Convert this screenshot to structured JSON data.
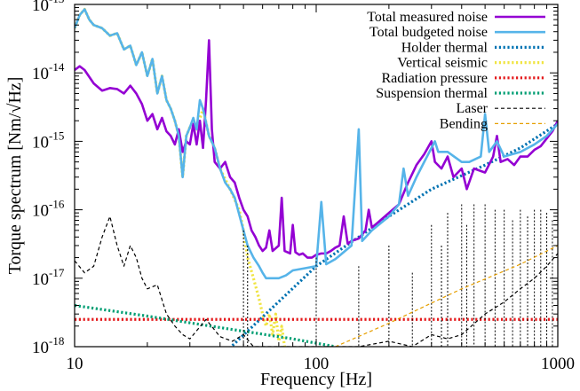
{
  "chart_data": {
    "type": "line",
    "xlabel": "Frequency [Hz]",
    "ylabel": "Torque spectrum [Nm/√Hz]",
    "xscale": "log",
    "yscale": "log",
    "xlim": [
      10,
      1000
    ],
    "ylim": [
      1e-18,
      1e-13
    ],
    "grid": false,
    "legend_position": "top-right",
    "x_ticks": [
      {
        "value": 10,
        "label": "10"
      },
      {
        "value": 100,
        "label": "100"
      },
      {
        "value": 1000,
        "label": "1000"
      }
    ],
    "y_ticks": [
      {
        "value": 1e-18,
        "base": "10",
        "exp": "-18"
      },
      {
        "value": 1e-17,
        "base": "10",
        "exp": "-17"
      },
      {
        "value": 1e-16,
        "base": "10",
        "exp": "-16"
      },
      {
        "value": 1e-15,
        "base": "10",
        "exp": "-15"
      },
      {
        "value": 1e-14,
        "base": "10",
        "exp": "-14"
      },
      {
        "value": 1e-13,
        "base": "10",
        "exp": "-13"
      }
    ],
    "series": [
      {
        "name": "Total measured noise",
        "color": "#9400d3",
        "style": "solid",
        "points": [
          [
            10,
            1.1e-14
          ],
          [
            10.5,
            1.25e-14
          ],
          [
            11,
            1.1e-14
          ],
          [
            12,
            7e-15
          ],
          [
            13,
            5.5e-15
          ],
          [
            14,
            6e-15
          ],
          [
            15,
            5.8e-15
          ],
          [
            16,
            5e-15
          ],
          [
            17,
            6.5e-15
          ],
          [
            18,
            5e-15
          ],
          [
            19,
            3.5e-15
          ],
          [
            20,
            2e-15
          ],
          [
            21,
            2.5e-15
          ],
          [
            22,
            1.5e-15
          ],
          [
            23,
            2.2e-15
          ],
          [
            24,
            1.4e-15
          ],
          [
            25,
            1.2e-15
          ],
          [
            26,
            9e-16
          ],
          [
            27,
            1.5e-15
          ],
          [
            28,
            7e-16
          ],
          [
            29,
            1e-15
          ],
          [
            30,
            9e-16
          ],
          [
            31,
            1.8e-15
          ],
          [
            32,
            9e-16
          ],
          [
            33,
            2e-15
          ],
          [
            34,
            8e-16
          ],
          [
            35,
            4e-15
          ],
          [
            36,
            3e-14
          ],
          [
            37,
            1.5e-15
          ],
          [
            38,
            5e-16
          ],
          [
            40,
            4e-16
          ],
          [
            42,
            5e-16
          ],
          [
            44,
            3e-16
          ],
          [
            46,
            2.5e-16
          ],
          [
            48,
            1.5e-16
          ],
          [
            50,
            1e-16
          ],
          [
            52,
            8e-17
          ],
          [
            54,
            5e-17
          ],
          [
            56,
            4e-17
          ],
          [
            58,
            3e-17
          ],
          [
            60,
            2.5e-17
          ],
          [
            62,
            2.8e-17
          ],
          [
            64,
            5e-17
          ],
          [
            66,
            2.5e-17
          ],
          [
            70,
            3e-17
          ],
          [
            72,
            1.5e-16
          ],
          [
            74,
            2.5e-17
          ],
          [
            78,
            2.3e-17
          ],
          [
            80,
            6e-17
          ],
          [
            82,
            2.4e-17
          ],
          [
            85,
            2.2e-17
          ],
          [
            88,
            2.3e-17
          ],
          [
            92,
            2e-17
          ],
          [
            96,
            2e-17
          ],
          [
            100,
            2.2e-17
          ],
          [
            105,
            2.3e-17
          ],
          [
            110,
            2.3e-17
          ],
          [
            115,
            2.5e-17
          ],
          [
            120,
            2.8e-17
          ],
          [
            125,
            3e-17
          ],
          [
            130,
            8e-17
          ],
          [
            135,
            3.2e-17
          ],
          [
            140,
            3.5e-17
          ],
          [
            150,
            3.8e-17
          ],
          [
            160,
            5e-17
          ],
          [
            165,
            1e-16
          ],
          [
            170,
            5.5e-17
          ],
          [
            180,
            6.5e-17
          ],
          [
            200,
            9e-17
          ],
          [
            220,
            1.2e-16
          ],
          [
            240,
            2.5e-16
          ],
          [
            260,
            4.5e-16
          ],
          [
            280,
            6.5e-16
          ],
          [
            300,
            1e-15
          ],
          [
            310,
            5e-16
          ],
          [
            330,
            4e-16
          ],
          [
            350,
            6e-16
          ],
          [
            370,
            3e-16
          ],
          [
            400,
            4e-16
          ],
          [
            420,
            2e-16
          ],
          [
            450,
            4e-16
          ],
          [
            500,
            3.5e-16
          ],
          [
            540,
            6e-16
          ],
          [
            560,
            1.2e-15
          ],
          [
            580,
            5e-16
          ],
          [
            620,
            5.5e-16
          ],
          [
            660,
            4.5e-16
          ],
          [
            700,
            6e-16
          ],
          [
            750,
            6e-16
          ],
          [
            800,
            7.5e-16
          ],
          [
            850,
            8.5e-16
          ],
          [
            900,
            1.1e-15
          ],
          [
            950,
            1.4e-15
          ],
          [
            1000,
            2e-15
          ]
        ]
      },
      {
        "name": "Total budgeted noise",
        "color": "#56b4e9",
        "style": "solid",
        "points": [
          [
            10,
            4.5e-14
          ],
          [
            10.5,
            7e-14
          ],
          [
            11,
            8.5e-14
          ],
          [
            11.5,
            6e-14
          ],
          [
            12,
            5e-14
          ],
          [
            13,
            4.5e-14
          ],
          [
            14,
            3.5e-14
          ],
          [
            15,
            3.8e-14
          ],
          [
            16,
            2.2e-14
          ],
          [
            17,
            2.5e-14
          ],
          [
            18,
            1.3e-14
          ],
          [
            19,
            2e-14
          ],
          [
            20,
            9e-15
          ],
          [
            21,
            1.6e-14
          ],
          [
            22,
            5e-15
          ],
          [
            23,
            9e-15
          ],
          [
            24,
            4e-15
          ],
          [
            25,
            3e-15
          ],
          [
            26,
            2e-15
          ],
          [
            27,
            1.2e-15
          ],
          [
            28,
            3e-16
          ],
          [
            29,
            1.2e-15
          ],
          [
            30,
            1.6e-15
          ],
          [
            31,
            2.2e-15
          ],
          [
            32,
            1.5e-15
          ],
          [
            33,
            4e-15
          ],
          [
            34,
            3e-15
          ],
          [
            36,
            1.2e-15
          ],
          [
            38,
            8e-16
          ],
          [
            40,
            4e-16
          ],
          [
            42,
            2.5e-16
          ],
          [
            44,
            2e-16
          ],
          [
            46,
            1.5e-16
          ],
          [
            50,
            5e-17
          ],
          [
            52,
            3e-17
          ],
          [
            55,
            2e-17
          ],
          [
            58,
            1.5e-17
          ],
          [
            60,
            1.2e-17
          ],
          [
            62,
            1e-17
          ],
          [
            66,
            1e-17
          ],
          [
            70,
            1e-17
          ],
          [
            75,
            1.1e-17
          ],
          [
            80,
            1.3e-17
          ],
          [
            90,
            1.4e-17
          ],
          [
            100,
            1.5e-17
          ],
          [
            105,
            1.3e-16
          ],
          [
            110,
            1.6e-17
          ],
          [
            120,
            1.9e-17
          ],
          [
            140,
            3e-17
          ],
          [
            150,
            1.5e-15
          ],
          [
            155,
            3.5e-17
          ],
          [
            170,
            5e-17
          ],
          [
            200,
            8e-17
          ],
          [
            220,
            1.2e-16
          ],
          [
            230,
            4e-16
          ],
          [
            240,
            1.6e-16
          ],
          [
            260,
            3e-16
          ],
          [
            280,
            5e-16
          ],
          [
            300,
            8e-16
          ],
          [
            310,
            1e-15
          ],
          [
            320,
            7e-16
          ],
          [
            350,
            7e-16
          ],
          [
            400,
            5e-16
          ],
          [
            430,
            5e-16
          ],
          [
            480,
            6e-16
          ],
          [
            500,
            2.5e-15
          ],
          [
            520,
            7e-16
          ],
          [
            560,
            1e-15
          ],
          [
            600,
            6e-16
          ],
          [
            700,
            7e-16
          ],
          [
            800,
            9e-16
          ],
          [
            900,
            1.2e-15
          ],
          [
            1000,
            1.8e-15
          ]
        ]
      },
      {
        "name": "Holder thermal",
        "color": "#0072b2",
        "style": "dotted",
        "points": [
          [
            40,
            7e-19
          ],
          [
            100,
            1.5e-17
          ],
          [
            200,
            8e-17
          ],
          [
            300,
            2e-16
          ],
          [
            500,
            4.5e-16
          ],
          [
            700,
            8e-16
          ],
          [
            1000,
            1.8e-15
          ]
        ]
      },
      {
        "name": "Vertical seismic",
        "color": "#f0e442",
        "style": "dotted",
        "points": [
          [
            10,
            4.5e-14
          ],
          [
            10.5,
            7e-14
          ],
          [
            11,
            8.5e-14
          ],
          [
            11.5,
            6e-14
          ],
          [
            12,
            5e-14
          ],
          [
            13,
            4.5e-14
          ],
          [
            14,
            3.5e-14
          ],
          [
            15,
            3.8e-14
          ],
          [
            16,
            2.2e-14
          ],
          [
            17,
            2.5e-14
          ],
          [
            18,
            1.3e-14
          ],
          [
            19,
            2e-14
          ],
          [
            20,
            9e-15
          ],
          [
            21,
            1.6e-14
          ],
          [
            22,
            5e-15
          ],
          [
            23,
            9e-15
          ],
          [
            24,
            4e-15
          ],
          [
            25,
            3e-15
          ],
          [
            26,
            2e-15
          ],
          [
            27,
            1.2e-15
          ],
          [
            28,
            3e-16
          ],
          [
            29,
            1.2e-15
          ],
          [
            30,
            1.6e-15
          ],
          [
            32,
            1.5e-15
          ],
          [
            34,
            3e-15
          ],
          [
            36,
            1.2e-15
          ],
          [
            38,
            8e-16
          ],
          [
            40,
            4e-16
          ],
          [
            44,
            2e-16
          ],
          [
            48,
            1e-16
          ],
          [
            50,
            5e-17
          ],
          [
            52,
            2e-17
          ],
          [
            55,
            1e-17
          ],
          [
            58,
            5e-18
          ],
          [
            60,
            3e-18
          ],
          [
            62,
            2e-18
          ],
          [
            64,
            3e-18
          ],
          [
            66,
            1.5e-18
          ],
          [
            68,
            3e-18
          ],
          [
            70,
            1.2e-18
          ],
          [
            72,
            2e-18
          ],
          [
            74,
            1e-18
          ]
        ]
      },
      {
        "name": "Radiation pressure",
        "color": "#e41a1c",
        "style": "dotted",
        "points": [
          [
            10,
            2.5e-18
          ],
          [
            1000,
            2.5e-18
          ]
        ]
      },
      {
        "name": "Suspension thermal",
        "color": "#009e73",
        "style": "dotted",
        "points": [
          [
            10,
            4e-18
          ],
          [
            20,
            2.8e-18
          ],
          [
            40,
            1.9e-18
          ],
          [
            80,
            1.3e-18
          ],
          [
            120,
            1e-18
          ]
        ]
      },
      {
        "name": "Laser",
        "color": "#000000",
        "style": "dashed",
        "points": [
          [
            10,
            1.8e-17
          ],
          [
            11,
            1.2e-17
          ],
          [
            12,
            1.5e-17
          ],
          [
            13,
            4e-17
          ],
          [
            14,
            8e-17
          ],
          [
            15,
            3e-17
          ],
          [
            16,
            1.5e-17
          ],
          [
            17,
            3e-17
          ],
          [
            18,
            2e-17
          ],
          [
            19,
            1e-17
          ],
          [
            20,
            7e-18
          ],
          [
            22,
            8e-18
          ],
          [
            24,
            3e-18
          ],
          [
            26,
            2e-18
          ],
          [
            28,
            1.5e-18
          ],
          [
            30,
            1.3e-18
          ],
          [
            35,
            2.5e-18
          ],
          [
            40,
            1.4e-18
          ],
          [
            45,
            1.2e-18
          ],
          [
            50,
            1.5e-18
          ],
          [
            55,
            1e-18
          ],
          [
            150,
            1e-18
          ],
          [
            200,
            1.2e-18
          ],
          [
            250,
            1e-18
          ],
          [
            300,
            1.5e-18
          ],
          [
            350,
            1.3e-18
          ],
          [
            400,
            1.5e-18
          ],
          [
            500,
            3e-18
          ],
          [
            600,
            4.5e-18
          ],
          [
            700,
            7e-18
          ],
          [
            800,
            1e-17
          ],
          [
            900,
            1.5e-17
          ],
          [
            1000,
            2.3e-17
          ]
        ],
        "spikes": [
          [
            50,
            5e-17
          ],
          [
            52,
            3e-17
          ],
          [
            100,
            2e-17
          ],
          [
            150,
            1.5e-17
          ],
          [
            200,
            3e-17
          ],
          [
            250,
            1.2e-17
          ],
          [
            300,
            6e-17
          ],
          [
            330,
            3e-17
          ],
          [
            350,
            9e-17
          ],
          [
            400,
            1.2e-16
          ],
          [
            420,
            6e-17
          ],
          [
            450,
            1.2e-16
          ],
          [
            500,
            1.2e-16
          ],
          [
            550,
            1e-16
          ],
          [
            600,
            1e-16
          ],
          [
            650,
            7e-17
          ],
          [
            700,
            1e-16
          ],
          [
            750,
            8e-17
          ],
          [
            800,
            1e-16
          ],
          [
            850,
            1e-16
          ],
          [
            900,
            9e-17
          ],
          [
            950,
            7e-17
          ]
        ]
      },
      {
        "name": "Bending",
        "color": "#e69f00",
        "style": "dashed",
        "points": [
          [
            120,
            1e-18
          ],
          [
            200,
            2.2e-18
          ],
          [
            400,
            7e-18
          ],
          [
            700,
            1.6e-17
          ],
          [
            1000,
            3e-17
          ]
        ]
      }
    ]
  }
}
